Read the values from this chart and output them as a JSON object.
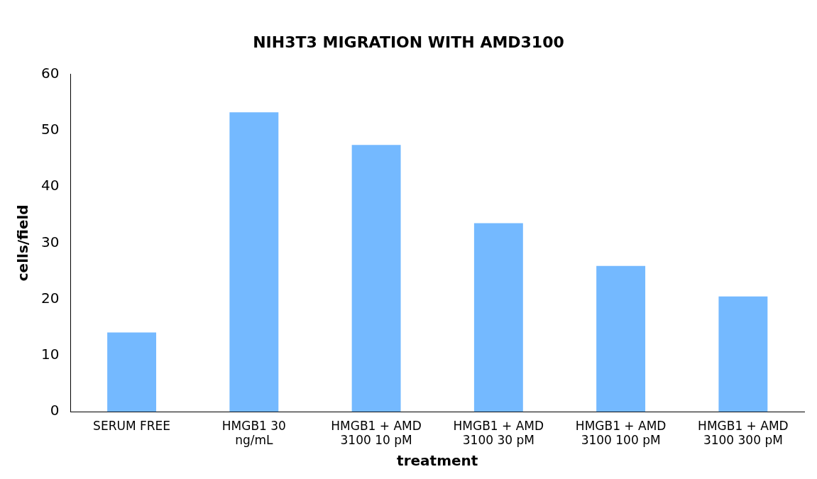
{
  "chart_data": {
    "type": "bar",
    "title": "NIH3T3 MIGRATION WITH AMD3100",
    "xlabel": "treatment",
    "ylabel": "cells/field",
    "categories": [
      "SERUM FREE",
      "HMGB1 30 ng/mL",
      "HMGB1 + AMD 3100 10 pM",
      "HMGB1 + AMD 3100 30 pM",
      "HMGB1 + AMD 3100 100 pM",
      "HMGB1 + AMD 3100 300 pM"
    ],
    "values": [
      14.1,
      53.2,
      47.4,
      33.5,
      25.9,
      20.5
    ],
    "color": "#74b9ff",
    "ylim": [
      0,
      60
    ],
    "yticks": [
      0,
      10,
      20,
      30,
      40,
      50,
      60
    ],
    "grid": false,
    "legend": false
  }
}
